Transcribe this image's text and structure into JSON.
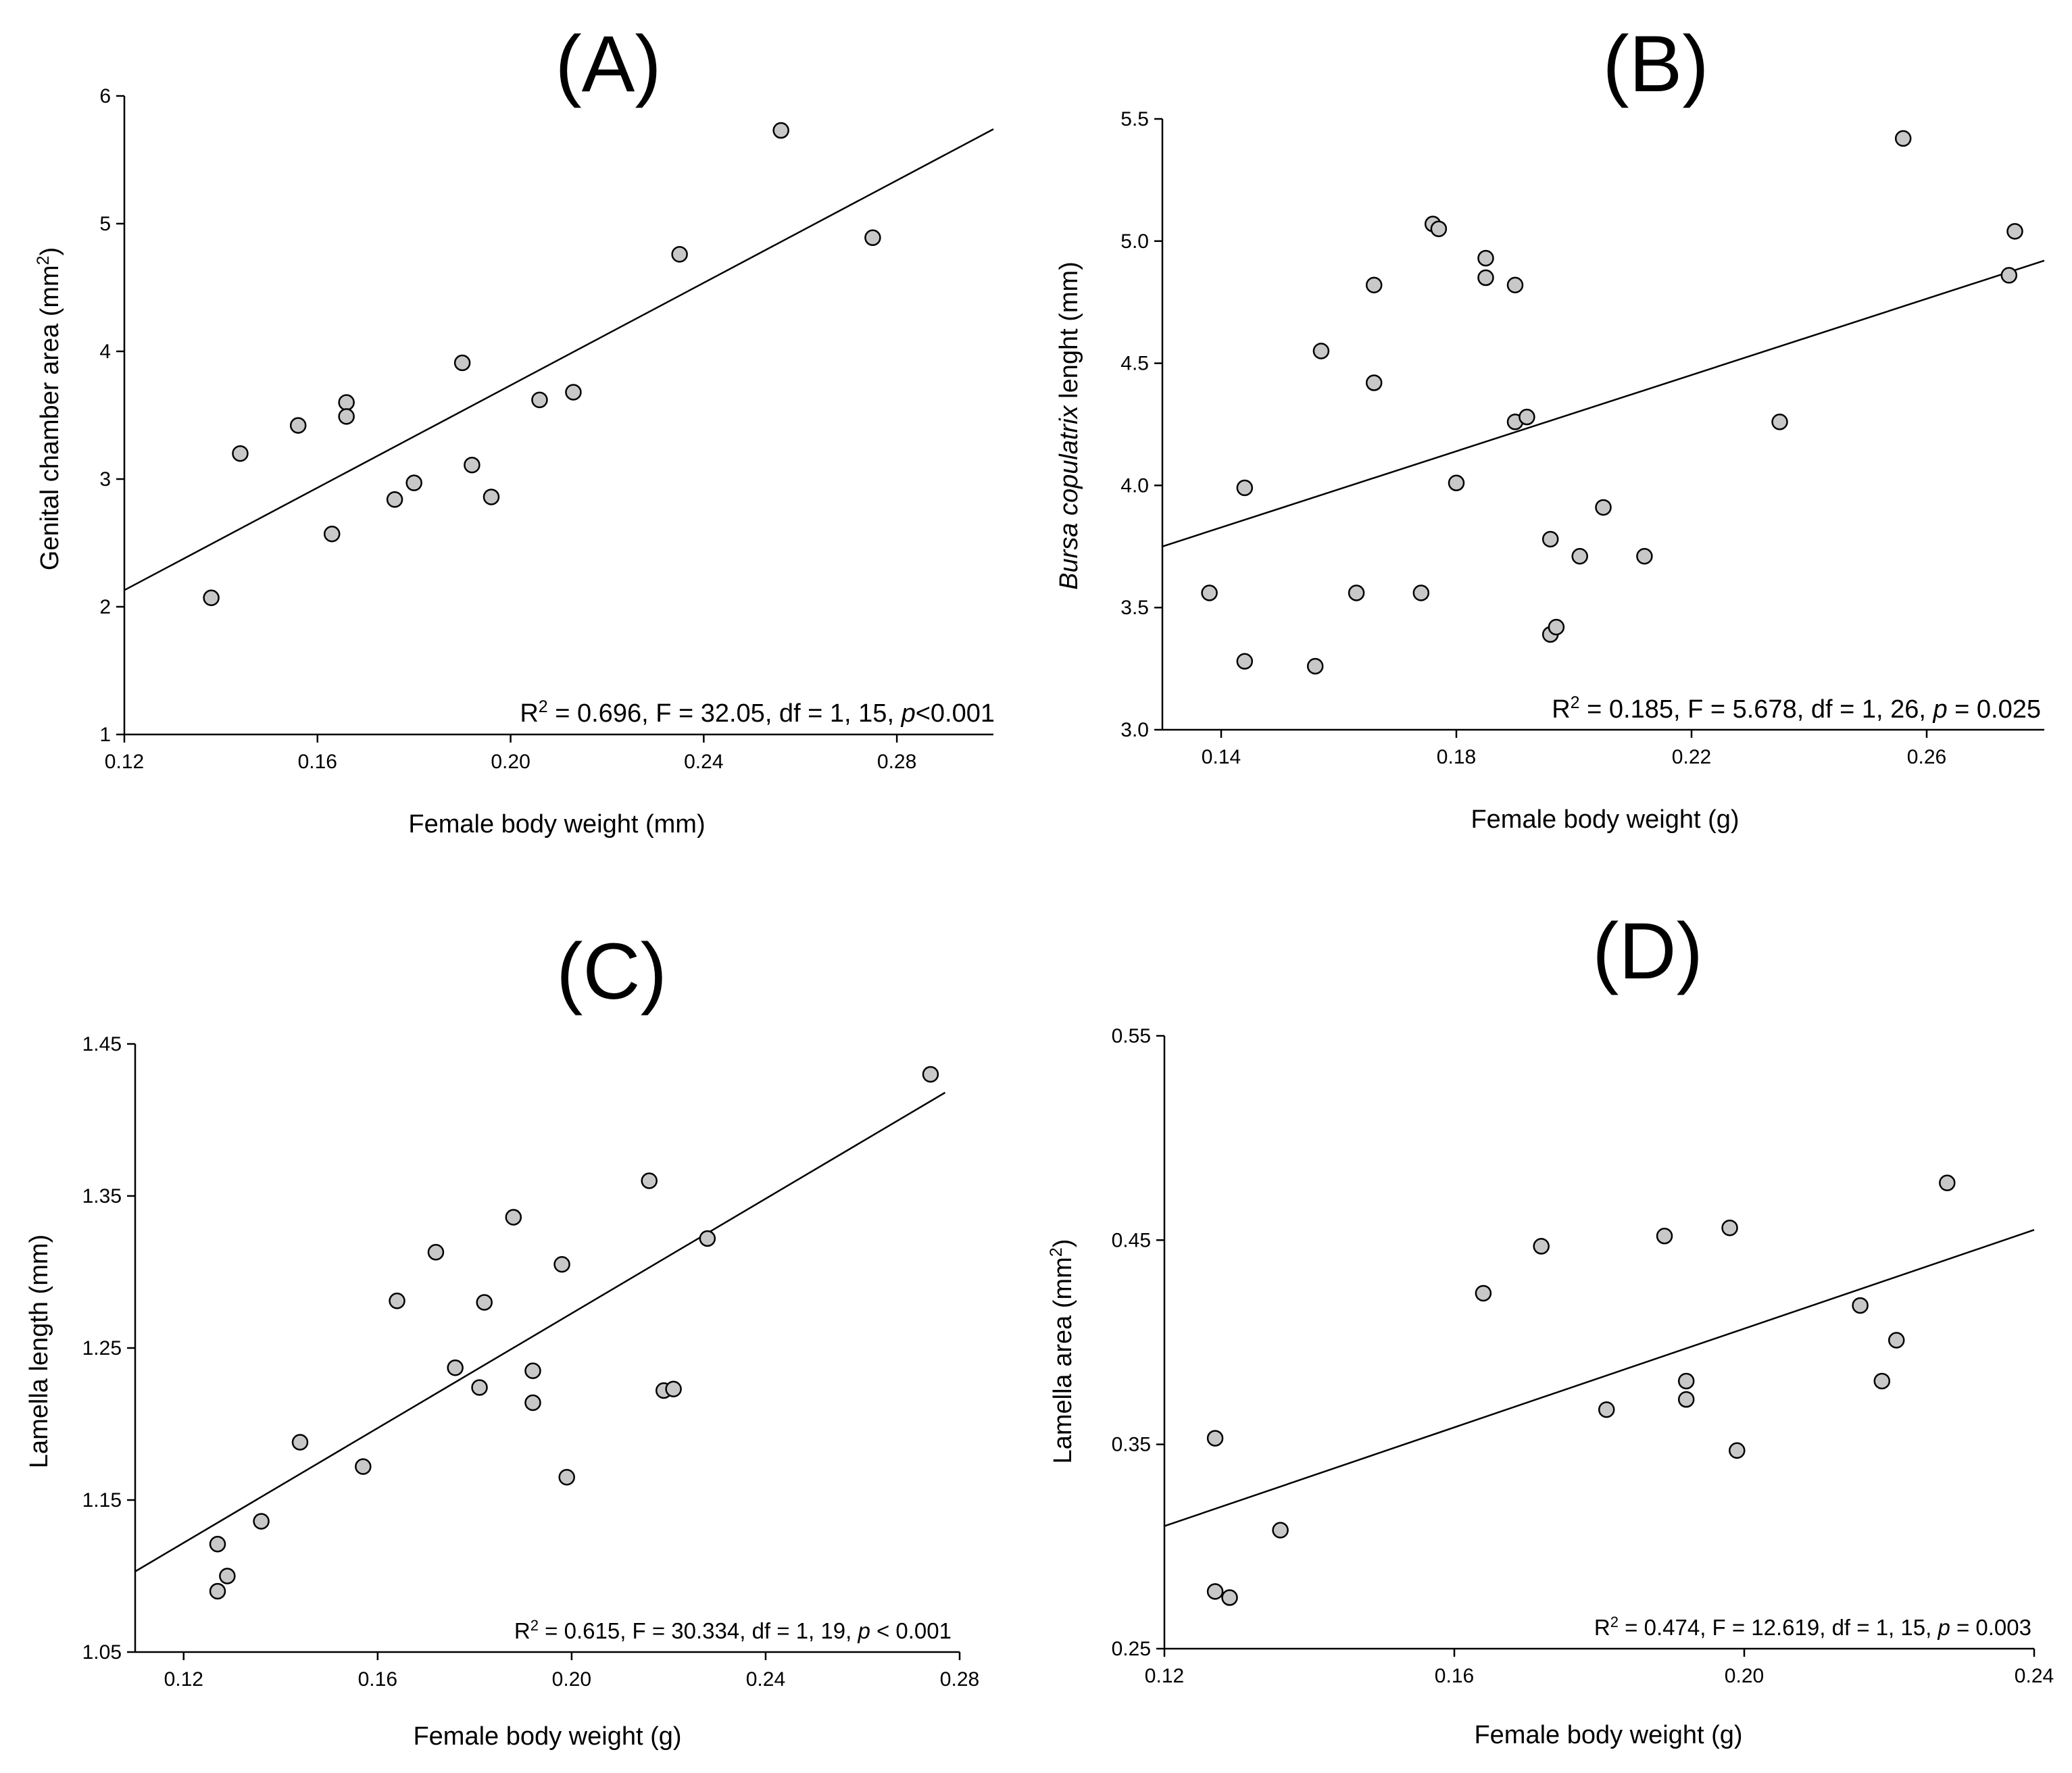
{
  "chart_data": [
    {
      "id": "A",
      "type": "scatter",
      "title": "(A)",
      "xlabel": "Female body weight (mm)",
      "ylabel_parts": [
        "Genital chamber area (mm",
        "2",
        ")"
      ],
      "xlim": [
        0.12,
        0.3
      ],
      "ylim": [
        1,
        6
      ],
      "xticks": [
        "0.12",
        "0.16",
        "0.20",
        "0.24",
        "0.28"
      ],
      "yticks": [
        "1",
        "2",
        "3",
        "4",
        "5",
        "6"
      ],
      "points": [
        [
          0.138,
          2.07
        ],
        [
          0.144,
          3.2
        ],
        [
          0.156,
          3.42
        ],
        [
          0.163,
          2.57
        ],
        [
          0.166,
          3.6
        ],
        [
          0.166,
          3.49
        ],
        [
          0.176,
          2.84
        ],
        [
          0.18,
          2.97
        ],
        [
          0.19,
          3.91
        ],
        [
          0.192,
          3.11
        ],
        [
          0.196,
          2.86
        ],
        [
          0.206,
          3.62
        ],
        [
          0.213,
          3.68
        ],
        [
          0.235,
          4.76
        ],
        [
          0.256,
          5.73
        ],
        [
          0.275,
          4.89
        ]
      ],
      "regression": {
        "x1": 0.12,
        "y1": 2.13,
        "x2": 0.3,
        "y2": 5.74
      },
      "stats_parts": [
        "R",
        "2",
        " = 0.696, F = 32.05, df = 1, 15, ",
        "p",
        "<0.001"
      ]
    },
    {
      "id": "B",
      "type": "scatter",
      "title": "(B)",
      "xlabel": "Female body weight (g)",
      "ylabel_parts": [
        "Bursa copulatrix",
        " lenght (mm)"
      ],
      "xlim": [
        0.13,
        0.28
      ],
      "ylim": [
        3.0,
        5.5
      ],
      "xticks": [
        "0.14",
        "0.18",
        "0.22",
        "0.26"
      ],
      "yticks": [
        "3.0",
        "3.5",
        "4.0",
        "4.5",
        "5.0",
        "5.5"
      ],
      "points": [
        [
          0.138,
          3.56
        ],
        [
          0.144,
          3.99
        ],
        [
          0.144,
          3.28
        ],
        [
          0.156,
          3.26
        ],
        [
          0.157,
          4.55
        ],
        [
          0.163,
          3.56
        ],
        [
          0.166,
          4.82
        ],
        [
          0.166,
          4.42
        ],
        [
          0.174,
          3.56
        ],
        [
          0.176,
          5.07
        ],
        [
          0.177,
          5.05
        ],
        [
          0.18,
          4.01
        ],
        [
          0.185,
          4.93
        ],
        [
          0.185,
          4.85
        ],
        [
          0.19,
          4.82
        ],
        [
          0.19,
          4.26
        ],
        [
          0.192,
          4.28
        ],
        [
          0.196,
          3.78
        ],
        [
          0.196,
          3.39
        ],
        [
          0.197,
          3.42
        ],
        [
          0.201,
          3.71
        ],
        [
          0.205,
          3.91
        ],
        [
          0.212,
          3.71
        ],
        [
          0.235,
          4.26
        ],
        [
          0.256,
          5.42
        ],
        [
          0.274,
          4.86
        ],
        [
          0.275,
          5.04
        ]
      ],
      "regression": {
        "x1": 0.13,
        "y1": 3.75,
        "x2": 0.28,
        "y2": 4.92
      },
      "stats_parts": [
        "R",
        "2",
        " = 0.185, F = 5.678, df = 1, 26, ",
        "p",
        " = 0.025"
      ]
    },
    {
      "id": "C",
      "type": "scatter",
      "title": "(C)",
      "xlabel": "Female body weight (g)",
      "ylabel_parts": [
        "Lamella length (mm)"
      ],
      "xlim": [
        0.11,
        0.28
      ],
      "ylim": [
        1.05,
        1.45
      ],
      "xticks": [
        "0.12",
        "0.16",
        "0.20",
        "0.24",
        "0.28"
      ],
      "yticks": [
        "1.05",
        "1.15",
        "1.25",
        "1.35",
        "1.45"
      ],
      "points": [
        [
          0.127,
          1.121
        ],
        [
          0.127,
          1.09
        ],
        [
          0.129,
          1.1
        ],
        [
          0.136,
          1.136
        ],
        [
          0.144,
          1.188
        ],
        [
          0.157,
          1.172
        ],
        [
          0.164,
          1.281
        ],
        [
          0.172,
          1.313
        ],
        [
          0.176,
          1.237
        ],
        [
          0.181,
          1.224
        ],
        [
          0.182,
          1.28
        ],
        [
          0.188,
          1.336
        ],
        [
          0.192,
          1.235
        ],
        [
          0.192,
          1.214
        ],
        [
          0.198,
          1.305
        ],
        [
          0.199,
          1.165
        ],
        [
          0.216,
          1.36
        ],
        [
          0.219,
          1.222
        ],
        [
          0.221,
          1.223
        ],
        [
          0.228,
          1.322
        ],
        [
          0.274,
          1.43
        ]
      ],
      "regression": {
        "x1": 0.11,
        "y1": 1.103,
        "x2": 0.277,
        "y2": 1.418
      },
      "stats_parts": [
        "R",
        "2",
        " = 0.615, F = 30.334, df = 1, 19, ",
        "p",
        " < 0.001"
      ]
    },
    {
      "id": "D",
      "type": "scatter",
      "title": "(D)",
      "xlabel": "Female body weight (g)",
      "ylabel_parts": [
        "Lamella area (mm",
        "2",
        ")"
      ],
      "xlim": [
        0.12,
        0.24
      ],
      "ylim": [
        0.25,
        0.55
      ],
      "xticks": [
        "0.12",
        "0.16",
        "0.20",
        "0.24"
      ],
      "yticks": [
        "0.25",
        "0.35",
        "0.45",
        "0.55"
      ],
      "points": [
        [
          0.127,
          0.353
        ],
        [
          0.127,
          0.278
        ],
        [
          0.129,
          0.275
        ],
        [
          0.136,
          0.308
        ],
        [
          0.164,
          0.424
        ],
        [
          0.172,
          0.447
        ],
        [
          0.181,
          0.367
        ],
        [
          0.189,
          0.452
        ],
        [
          0.192,
          0.381
        ],
        [
          0.192,
          0.372
        ],
        [
          0.198,
          0.456
        ],
        [
          0.199,
          0.347
        ],
        [
          0.216,
          0.418
        ],
        [
          0.219,
          0.381
        ],
        [
          0.221,
          0.401
        ],
        [
          0.228,
          0.478
        ]
      ],
      "regression": {
        "x1": 0.12,
        "y1": 0.31,
        "x2": 0.24,
        "y2": 0.455
      },
      "stats_parts": [
        "R",
        "2",
        " = 0.474, F = 12.619, df = 1, 15, ",
        "p",
        " = 0.003"
      ]
    }
  ]
}
